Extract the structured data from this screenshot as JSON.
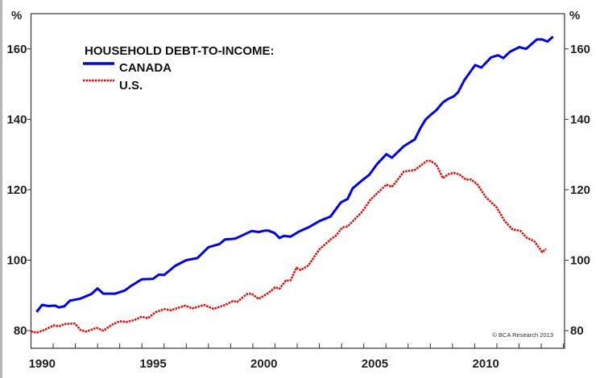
{
  "chart_data": {
    "type": "line",
    "title": "HOUSEHOLD DEBT-TO-INCOME:",
    "ylabel_left": "%",
    "ylabel_right": "%",
    "xlim": [
      1990,
      2014.05
    ],
    "ylim": [
      75,
      170
    ],
    "yticks": [
      80,
      100,
      120,
      140,
      160
    ],
    "xtick_labels": [
      1990,
      1995,
      2000,
      2005,
      2010
    ],
    "grid": false,
    "legend_position": "top-left",
    "credit": "© BCA Research 2013",
    "series": [
      {
        "name": "CANADA",
        "color": "#0000ff",
        "style": "solid",
        "x": [
          1990.25,
          1990.5,
          1990.78,
          1991.08,
          1991.26,
          1991.5,
          1991.75,
          1992.23,
          1992.72,
          1993.0,
          1993.26,
          1993.8,
          1994.23,
          1994.53,
          1995.0,
          1995.5,
          1995.76,
          1996.0,
          1996.5,
          1997.0,
          1997.5,
          1998.0,
          1998.5,
          1998.75,
          1999.2,
          1999.95,
          2000.25,
          2000.55,
          2000.7,
          2000.98,
          2001.2,
          2001.4,
          2001.7,
          2002.1,
          2002.5,
          2003.0,
          2003.5,
          2003.97,
          2004.27,
          2004.5,
          2004.93,
          2005.24,
          2005.6,
          2006.02,
          2006.27,
          2006.81,
          2007.3,
          2007.54,
          2007.78,
          2008.02,
          2008.27,
          2008.57,
          2008.8,
          2009.05,
          2009.25,
          2009.53,
          2010.02,
          2010.3,
          2010.74,
          2011.05,
          2011.29,
          2011.59,
          2012.01,
          2012.32,
          2012.8,
          2013.04,
          2013.28,
          2013.53
        ],
        "y": [
          85.3,
          87.3,
          87.0,
          87.1,
          86.6,
          86.9,
          88.5,
          89.1,
          90.4,
          92.0,
          90.5,
          90.5,
          91.4,
          92.8,
          94.6,
          94.7,
          95.9,
          95.8,
          98.4,
          100.0,
          100.6,
          103.7,
          104.6,
          105.9,
          106.1,
          108.3,
          108.0,
          108.4,
          108.4,
          107.7,
          106.3,
          106.9,
          106.7,
          108.2,
          109.3,
          111.1,
          112.4,
          116.4,
          117.4,
          120.4,
          122.7,
          124.2,
          127.3,
          130.1,
          129.1,
          132.4,
          134.3,
          137.4,
          139.9,
          141.3,
          142.6,
          144.8,
          145.8,
          146.5,
          147.7,
          151.1,
          155.4,
          154.7,
          157.6,
          158.2,
          157.4,
          159.2,
          160.5,
          160.0,
          162.7,
          162.7,
          162.1,
          163.5
        ]
      },
      {
        "name": "U.S.",
        "color": "#ff0000",
        "style": "dotted",
        "x": [
          1990.0,
          1990.25,
          1990.6,
          1991.03,
          1991.26,
          1991.5,
          1991.98,
          1992.23,
          1992.47,
          1992.96,
          1993.26,
          1993.68,
          1994.0,
          1994.3,
          1994.65,
          1995.0,
          1995.26,
          1995.6,
          1996.0,
          1996.3,
          1996.95,
          1997.27,
          1997.8,
          1998.23,
          1998.75,
          1999.1,
          1999.3,
          1999.72,
          1999.95,
          2000.25,
          2000.7,
          2001.0,
          2001.2,
          2001.48,
          2001.7,
          2001.97,
          2002.15,
          2002.5,
          2003.0,
          2003.5,
          2003.73,
          2004.03,
          2004.27,
          2004.93,
          2005.3,
          2006.02,
          2006.27,
          2006.81,
          2007.3,
          2007.84,
          2008.02,
          2008.27,
          2008.57,
          2008.8,
          2009.05,
          2009.3,
          2009.6,
          2009.84,
          2010.14,
          2010.5,
          2011.0,
          2011.35,
          2011.7,
          2012.07,
          2012.32,
          2012.68,
          2013.04,
          2013.22
        ],
        "y": [
          79.8,
          79.4,
          80.2,
          81.5,
          81.2,
          81.9,
          82.0,
          80.2,
          79.7,
          80.8,
          80.0,
          81.8,
          82.7,
          82.5,
          83.0,
          84.0,
          83.5,
          85.2,
          86.1,
          85.8,
          87.1,
          86.3,
          87.3,
          86.2,
          87.3,
          88.4,
          88.2,
          90.4,
          90.5,
          89.0,
          90.7,
          92.3,
          91.9,
          94.2,
          94.3,
          97.9,
          97.2,
          98.5,
          103.1,
          105.9,
          106.9,
          109.3,
          109.6,
          113.8,
          117.2,
          121.5,
          120.8,
          125.2,
          125.6,
          128.2,
          128.2,
          127.1,
          123.3,
          124.4,
          124.8,
          124.4,
          122.9,
          122.9,
          121.4,
          117.9,
          114.9,
          111.1,
          108.8,
          108.3,
          106.5,
          105.4,
          102.3,
          103.2
        ]
      }
    ]
  }
}
